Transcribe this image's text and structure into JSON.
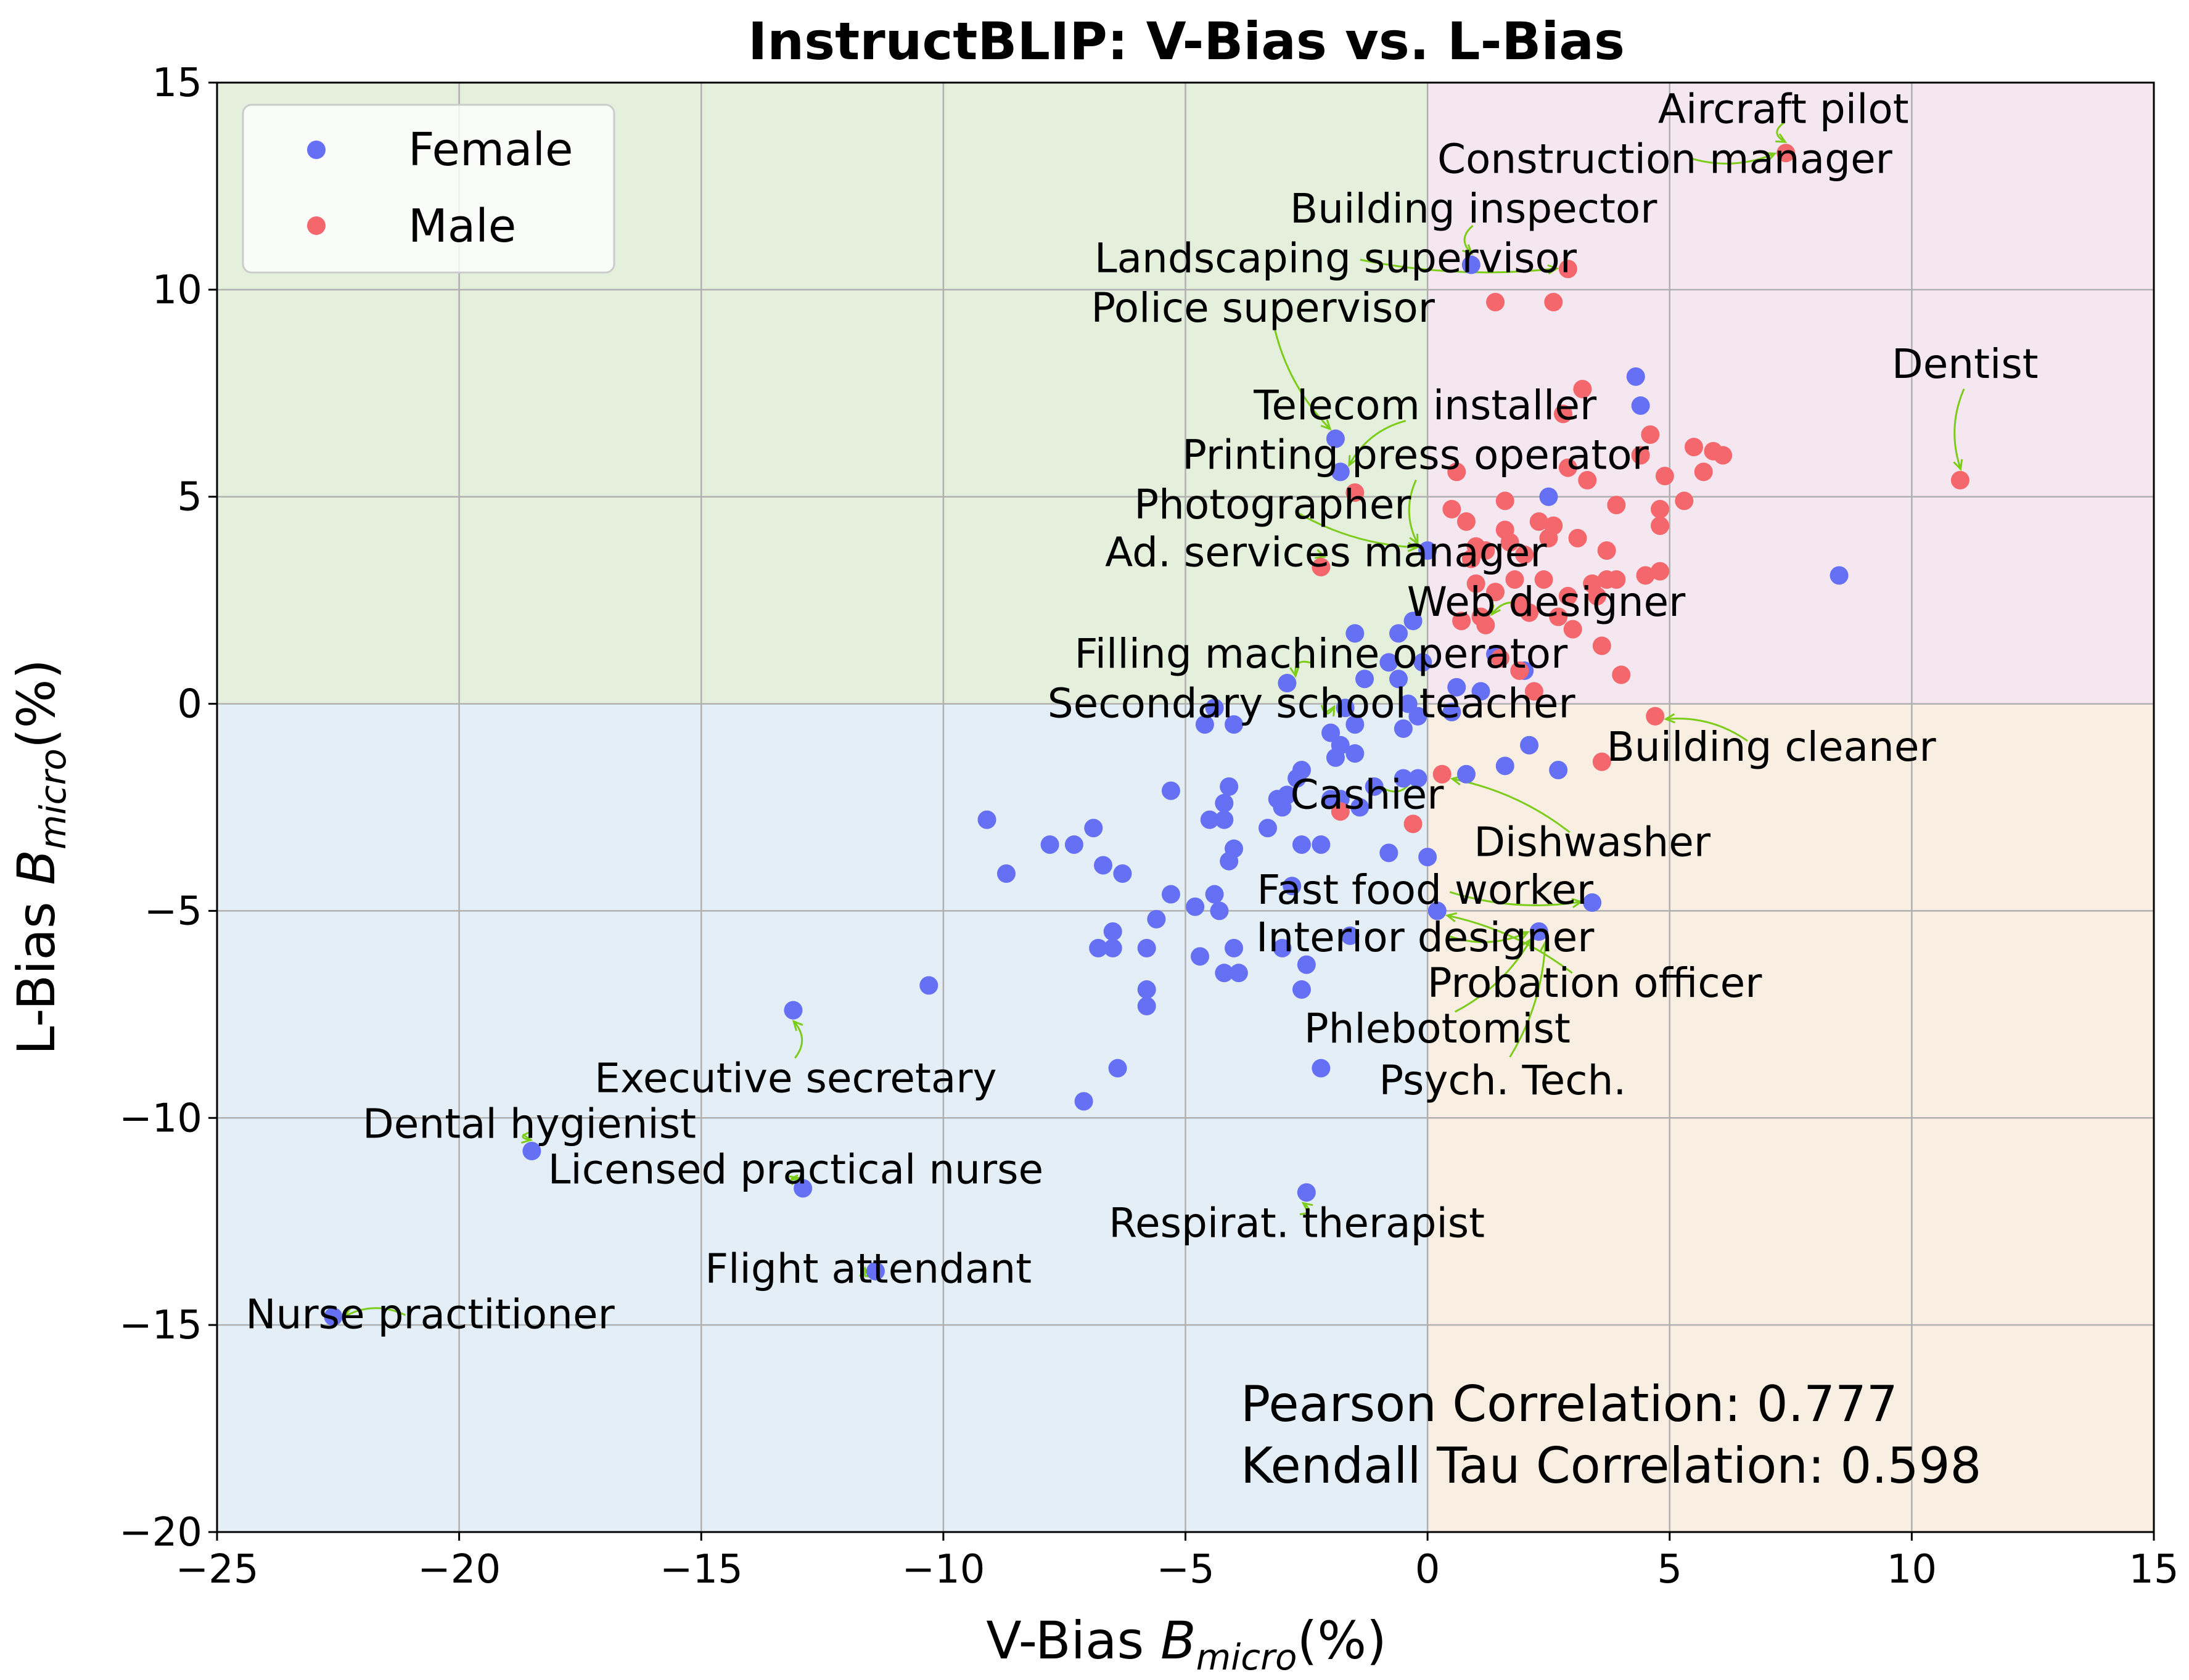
{
  "chart_data": {
    "type": "scatter",
    "title": "InstructBLIP: V-Bias vs. L-Bias",
    "xlabel": "V-Bias  B_micro(%)",
    "ylabel": "L-Bias  B_micro(%)",
    "xlim": [
      -25,
      15
    ],
    "ylim": [
      -20,
      15
    ],
    "xticks": [
      "−25",
      "−20",
      "−15",
      "−10",
      "−5",
      "0",
      "5",
      "10",
      "15"
    ],
    "yticks": [
      "−20",
      "−15",
      "−10",
      "−5",
      "0",
      "5",
      "10",
      "15"
    ],
    "grid": true,
    "legend_position": "top-left",
    "quadrant_colors": {
      "top_left": "#e4efdc",
      "top_right": "#f5e7ef",
      "bottom_left": "#e3eef7",
      "bottom_right": "#f8eee2"
    },
    "stats": [
      "Pearson Correlation: 0.777",
      "Kendall Tau Correlation: 0.598"
    ],
    "series": [
      {
        "name": "Female",
        "color": "#6670f5",
        "points": [
          [
            -22.6,
            -14.8
          ],
          [
            -18.5,
            -10.8
          ],
          [
            -13.1,
            -7.4
          ],
          [
            -12.9,
            -11.7
          ],
          [
            -11.4,
            -13.7
          ],
          [
            -10.3,
            -6.8
          ],
          [
            -9.1,
            -2.8
          ],
          [
            -8.7,
            -4.1
          ],
          [
            -7.8,
            -3.4
          ],
          [
            -7.3,
            -3.4
          ],
          [
            -7.1,
            -9.6
          ],
          [
            -6.9,
            -3.0
          ],
          [
            -6.8,
            -5.9
          ],
          [
            -6.7,
            -3.9
          ],
          [
            -6.5,
            -5.9
          ],
          [
            -6.5,
            -5.5
          ],
          [
            -6.4,
            -8.8
          ],
          [
            -6.3,
            -4.1
          ],
          [
            -5.8,
            -5.9
          ],
          [
            -5.8,
            -6.9
          ],
          [
            -5.8,
            -7.3
          ],
          [
            -5.6,
            -5.2
          ],
          [
            -5.3,
            -4.6
          ],
          [
            -5.3,
            -2.1
          ],
          [
            -4.8,
            -4.9
          ],
          [
            -4.7,
            -6.1
          ],
          [
            -4.6,
            -0.5
          ],
          [
            -4.5,
            -2.8
          ],
          [
            -4.4,
            -4.6
          ],
          [
            -4.4,
            -0.1
          ],
          [
            -4.3,
            -5.0
          ],
          [
            -4.2,
            -6.5
          ],
          [
            -4.2,
            -2.8
          ],
          [
            -4.2,
            -2.4
          ],
          [
            -4.1,
            -3.8
          ],
          [
            -4.1,
            -2.0
          ],
          [
            -4.0,
            -3.5
          ],
          [
            -4.0,
            -5.9
          ],
          [
            -4.0,
            -0.5
          ],
          [
            -3.9,
            -6.5
          ],
          [
            -3.3,
            -3.0
          ],
          [
            -3.1,
            -2.3
          ],
          [
            -3.0,
            -2.5
          ],
          [
            -3.0,
            -5.9
          ],
          [
            -2.9,
            0.5
          ],
          [
            -2.9,
            -2.2
          ],
          [
            -2.8,
            -4.4
          ],
          [
            -2.7,
            -1.8
          ],
          [
            -2.6,
            -3.4
          ],
          [
            -2.6,
            -6.9
          ],
          [
            -2.6,
            -1.6
          ],
          [
            -2.5,
            -6.3
          ],
          [
            -2.5,
            -11.8
          ],
          [
            -2.2,
            -3.4
          ],
          [
            -2.2,
            -8.8
          ],
          [
            -2.0,
            -2.3
          ],
          [
            -2.0,
            -0.7
          ],
          [
            -1.9,
            -1.3
          ],
          [
            -1.9,
            6.4
          ],
          [
            -1.8,
            5.6
          ],
          [
            -1.8,
            -1.0
          ],
          [
            -1.8,
            -2.3
          ],
          [
            -1.7,
            -0.1
          ],
          [
            -1.6,
            -5.6
          ],
          [
            -1.5,
            -1.2
          ],
          [
            -1.5,
            -0.5
          ],
          [
            -1.5,
            1.7
          ],
          [
            -1.4,
            -2.5
          ],
          [
            -1.3,
            0.6
          ],
          [
            -1.1,
            -2.0
          ],
          [
            -0.8,
            -3.6
          ],
          [
            -0.8,
            1.0
          ],
          [
            -0.6,
            0.6
          ],
          [
            -0.6,
            1.7
          ],
          [
            -0.5,
            -0.6
          ],
          [
            -0.5,
            -1.8
          ],
          [
            -0.4,
            0.0
          ],
          [
            -0.3,
            2.0
          ],
          [
            -0.2,
            -1.8
          ],
          [
            -0.2,
            -0.3
          ],
          [
            -0.1,
            1.0
          ],
          [
            0.0,
            -3.7
          ],
          [
            0.0,
            3.7
          ],
          [
            0.2,
            -5.0
          ],
          [
            0.5,
            -0.2
          ],
          [
            0.6,
            0.4
          ],
          [
            0.8,
            -1.7
          ],
          [
            0.9,
            10.6
          ],
          [
            1.1,
            0.3
          ],
          [
            1.4,
            1.2
          ],
          [
            1.6,
            -1.5
          ],
          [
            2.0,
            0.8
          ],
          [
            2.1,
            -1.0
          ],
          [
            2.3,
            -5.5
          ],
          [
            2.5,
            5.0
          ],
          [
            2.7,
            -1.6
          ],
          [
            3.4,
            -4.8
          ],
          [
            4.3,
            7.9
          ],
          [
            4.4,
            7.2
          ],
          [
            8.5,
            3.1
          ]
        ]
      },
      {
        "name": "Male",
        "color": "#f4676d",
        "points": [
          [
            -2.2,
            3.3
          ],
          [
            -1.8,
            -2.6
          ],
          [
            -1.5,
            5.1
          ],
          [
            -0.3,
            -2.9
          ],
          [
            0.3,
            -1.7
          ],
          [
            0.5,
            4.7
          ],
          [
            0.6,
            5.6
          ],
          [
            0.7,
            2.0
          ],
          [
            0.8,
            4.4
          ],
          [
            0.9,
            3.5
          ],
          [
            1.0,
            3.8
          ],
          [
            1.0,
            2.9
          ],
          [
            1.1,
            2.1
          ],
          [
            1.2,
            1.9
          ],
          [
            1.2,
            3.7
          ],
          [
            1.4,
            9.7
          ],
          [
            1.4,
            2.7
          ],
          [
            1.5,
            1.1
          ],
          [
            1.6,
            4.9
          ],
          [
            1.6,
            4.2
          ],
          [
            1.7,
            3.9
          ],
          [
            1.8,
            3.0
          ],
          [
            1.9,
            2.4
          ],
          [
            1.9,
            0.8
          ],
          [
            2.0,
            3.6
          ],
          [
            2.1,
            2.2
          ],
          [
            2.2,
            0.3
          ],
          [
            2.3,
            4.4
          ],
          [
            2.4,
            3.0
          ],
          [
            2.5,
            4.0
          ],
          [
            2.6,
            9.7
          ],
          [
            2.6,
            4.3
          ],
          [
            2.7,
            2.1
          ],
          [
            2.8,
            7.0
          ],
          [
            2.9,
            10.5
          ],
          [
            2.9,
            5.7
          ],
          [
            2.9,
            2.6
          ],
          [
            3.0,
            1.8
          ],
          [
            3.1,
            4.0
          ],
          [
            3.2,
            7.6
          ],
          [
            3.3,
            5.4
          ],
          [
            3.4,
            2.9
          ],
          [
            3.5,
            2.6
          ],
          [
            3.6,
            1.4
          ],
          [
            3.6,
            -1.4
          ],
          [
            3.7,
            3.7
          ],
          [
            3.7,
            3.0
          ],
          [
            3.9,
            3.0
          ],
          [
            3.9,
            4.8
          ],
          [
            4.0,
            0.7
          ],
          [
            4.4,
            6.0
          ],
          [
            4.5,
            3.1
          ],
          [
            4.6,
            6.5
          ],
          [
            4.7,
            -0.3
          ],
          [
            4.8,
            4.7
          ],
          [
            4.8,
            4.3
          ],
          [
            4.8,
            3.2
          ],
          [
            4.9,
            5.5
          ],
          [
            5.3,
            4.9
          ],
          [
            5.5,
            6.2
          ],
          [
            5.7,
            5.6
          ],
          [
            5.9,
            6.1
          ],
          [
            6.1,
            6.0
          ],
          [
            7.4,
            13.3
          ],
          [
            11.0,
            5.4
          ]
        ]
      }
    ],
    "annotations": [
      {
        "text": "Aircraft pilot",
        "x": 7.4,
        "y": 13.3,
        "tx": 7.35,
        "ty": 14.35
      },
      {
        "text": "Construction manager",
        "x": 7.4,
        "y": 13.3,
        "tx": 4.9,
        "ty": 13.15
      },
      {
        "text": "Building inspector",
        "x": 0.9,
        "y": 10.6,
        "tx": 0.95,
        "ty": 11.95
      },
      {
        "text": "Landscaping supervisor",
        "x": 2.9,
        "y": 10.5,
        "tx": -1.9,
        "ty": 10.75
      },
      {
        "text": "Police supervisor",
        "x": -1.9,
        "y": 6.4,
        "tx": -3.4,
        "ty": 9.55
      },
      {
        "text": "Dentist",
        "x": 11.0,
        "y": 5.4,
        "tx": 11.1,
        "ty": 8.2
      },
      {
        "text": "Telecom installer",
        "x": -1.8,
        "y": 5.6,
        "tx": -0.05,
        "ty": 7.2
      },
      {
        "text": "Printing press operator",
        "x": -0.2,
        "y": 3.6,
        "tx": -0.25,
        "ty": 6.0
      },
      {
        "text": "Photographer",
        "x": 0.0,
        "y": 3.7,
        "tx": -3.2,
        "ty": 4.8
      },
      {
        "text": "Ad. services manager",
        "x": -2.2,
        "y": 3.3,
        "tx": -2.1,
        "ty": 3.65
      },
      {
        "text": "Web designer",
        "x": 1.1,
        "y": 2.1,
        "tx": 2.45,
        "ty": 2.45
      },
      {
        "text": "Filling machine operator",
        "x": -2.9,
        "y": 0.5,
        "tx": -2.2,
        "ty": 1.2
      },
      {
        "text": "Secondary school teacher",
        "x": -1.7,
        "y": -0.1,
        "tx": -2.4,
        "ty": 0.0
      },
      {
        "text": "Building cleaner",
        "x": 4.7,
        "y": -0.3,
        "tx": 7.1,
        "ty": -1.05
      },
      {
        "text": "Cashier",
        "x": -0.1,
        "y": -1.7,
        "tx": -1.25,
        "ty": -2.2
      },
      {
        "text": "Dishwasher",
        "x": 0.3,
        "y": -1.7,
        "tx": 3.4,
        "ty": -3.35
      },
      {
        "text": "Fast food worker",
        "x": 3.4,
        "y": -4.8,
        "tx": -0.05,
        "ty": -4.5
      },
      {
        "text": "Interior designer",
        "x": 2.3,
        "y": -5.5,
        "tx": -0.05,
        "ty": -5.65
      },
      {
        "text": "Probation officer",
        "x": 0.2,
        "y": -5.0,
        "tx": 3.45,
        "ty": -6.75
      },
      {
        "text": "Phlebotomist",
        "x": 2.3,
        "y": -5.5,
        "tx": 0.2,
        "ty": -7.85
      },
      {
        "text": "Psych. Tech.",
        "x": 2.5,
        "y": -5.5,
        "tx": 1.55,
        "ty": -9.1
      },
      {
        "text": "Executive secretary",
        "x": -13.1,
        "y": -7.4,
        "tx": -13.05,
        "ty": -9.05
      },
      {
        "text": "Dental hygienist",
        "x": -18.5,
        "y": -10.8,
        "tx": -18.55,
        "ty": -10.15
      },
      {
        "text": "Licensed practical nurse",
        "x": -12.9,
        "y": -11.7,
        "tx": -13.05,
        "ty": -11.25
      },
      {
        "text": "Respirat. therapist",
        "x": -2.5,
        "y": -11.8,
        "tx": -2.7,
        "ty": -12.55
      },
      {
        "text": "Flight attendant",
        "x": -11.4,
        "y": -13.7,
        "tx": -11.55,
        "ty": -13.65
      },
      {
        "text": "Nurse practitioner",
        "x": -22.6,
        "y": -14.8,
        "tx": -20.6,
        "ty": -14.75
      }
    ]
  }
}
